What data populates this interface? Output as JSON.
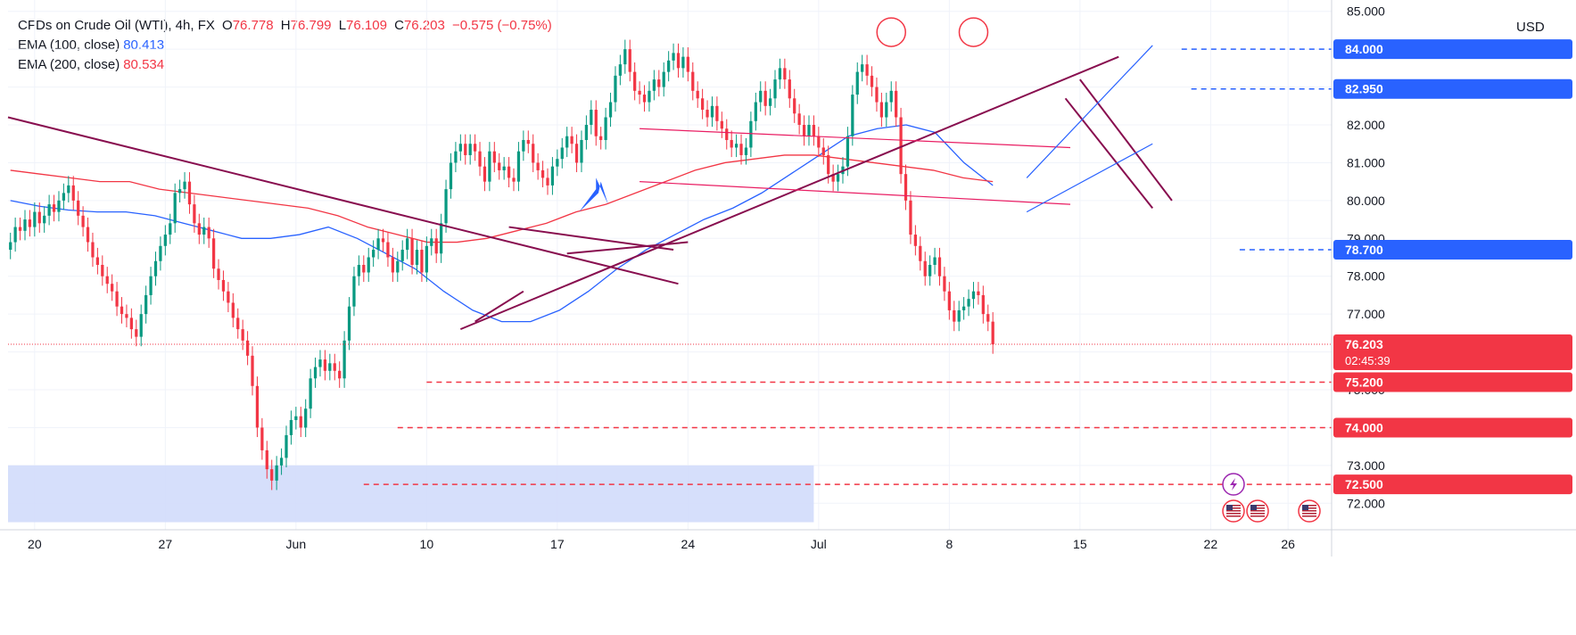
{
  "header": {
    "symbol": "CFDs on Crude Oil (WTI), 4h, FX",
    "o_label": "O",
    "o_value": "76.778",
    "h_label": "H",
    "h_value": "76.799",
    "l_label": "L",
    "l_value": "76.109",
    "c_label": "C",
    "c_value": "76.203",
    "change": "−0.575 (−0.75%)",
    "ema100_label": "EMA (100, close)",
    "ema100_value": "80.413",
    "ema200_label": "EMA (200, close)",
    "ema200_value": "80.534",
    "currency": "USD"
  },
  "colors": {
    "up": "#089981",
    "down": "#f23645",
    "ema100": "#2962ff",
    "ema200": "#f23645",
    "trendline": "#880e4f",
    "channel": "#e91e63",
    "support": "#f23645",
    "resistance": "#2962ff",
    "zone": "#d1dcfb",
    "grid": "#f0f3fa"
  },
  "chart_data": {
    "type": "candlestick",
    "title": "CFDs on Crude Oil (WTI), 4h, FX",
    "ylim": [
      71.3,
      85.3
    ],
    "y_ticks": [
      "72.000",
      "73.000",
      "74.000",
      "75.000",
      "76.000",
      "77.000",
      "78.000",
      "79.000",
      "80.000",
      "81.000",
      "82.000",
      "83.000",
      "84.000",
      "85.000"
    ],
    "x_ticks": [
      {
        "label": "20",
        "t": 5
      },
      {
        "label": "27",
        "t": 32
      },
      {
        "label": "Jun",
        "t": 59
      },
      {
        "label": "10",
        "t": 86
      },
      {
        "label": "17",
        "t": 113
      },
      {
        "label": "24",
        "t": 140
      },
      {
        "label": "Jul",
        "t": 167
      },
      {
        "label": "8",
        "t": 194
      },
      {
        "label": "15",
        "t": 221
      },
      {
        "label": "22",
        "t": 248
      },
      {
        "label": "26",
        "t": 264
      }
    ],
    "t_range": [
      -0.5,
      273
    ],
    "closes": [
      78.9,
      79.3,
      79.2,
      79.5,
      79.3,
      79.7,
      79.4,
      79.6,
      79.9,
      79.7,
      80.0,
      80.2,
      80.4,
      80.0,
      79.6,
      79.3,
      78.9,
      78.5,
      78.3,
      78.0,
      77.8,
      77.6,
      77.2,
      77.0,
      76.9,
      76.6,
      76.4,
      77.0,
      77.5,
      78.0,
      78.4,
      78.8,
      79.1,
      79.4,
      80.2,
      80.3,
      80.5,
      79.9,
      79.4,
      79.1,
      79.3,
      79.0,
      78.2,
      77.9,
      77.6,
      77.3,
      76.9,
      76.6,
      76.3,
      75.9,
      75.1,
      74.0,
      73.4,
      72.9,
      72.6,
      73.0,
      73.2,
      73.8,
      74.2,
      74.3,
      74.0,
      74.5,
      75.3,
      75.6,
      75.8,
      75.5,
      75.7,
      75.5,
      75.3,
      76.3,
      77.2,
      78.0,
      78.3,
      78.1,
      78.5,
      78.7,
      79.0,
      78.9,
      78.5,
      78.1,
      78.4,
      78.7,
      79.0,
      78.3,
      78.7,
      78.1,
      78.8,
      79.0,
      78.6,
      79.4,
      80.3,
      81.0,
      81.3,
      81.5,
      81.2,
      81.5,
      81.3,
      80.9,
      80.5,
      81.3,
      81.0,
      80.8,
      80.9,
      80.6,
      80.5,
      81.3,
      81.6,
      81.5,
      81.0,
      80.8,
      80.6,
      80.4,
      80.9,
      81.1,
      81.4,
      81.7,
      81.5,
      81.0,
      81.6,
      82.0,
      82.4,
      81.7,
      81.6,
      82.2,
      82.6,
      83.3,
      83.6,
      84.0,
      83.4,
      82.9,
      82.8,
      82.6,
      82.9,
      83.2,
      83.0,
      83.4,
      83.7,
      83.9,
      83.5,
      83.8,
      83.4,
      82.9,
      82.7,
      82.4,
      82.2,
      82.5,
      82.1,
      81.9,
      81.6,
      81.4,
      81.5,
      81.2,
      81.4,
      82.1,
      82.6,
      82.9,
      82.5,
      82.7,
      83.2,
      83.5,
      83.2,
      82.7,
      82.3,
      82.0,
      81.7,
      82.0,
      81.7,
      81.4,
      81.2,
      80.7,
      80.5,
      80.7,
      80.9,
      81.7,
      82.8,
      83.4,
      83.6,
      83.3,
      83.0,
      82.6,
      82.2,
      82.6,
      82.9,
      82.2,
      80.7,
      80.0,
      79.1,
      78.8,
      78.4,
      78.0,
      78.3,
      78.5,
      78.0,
      77.6,
      77.1,
      76.8,
      77.1,
      77.2,
      77.4,
      77.6,
      77.5,
      77.0,
      76.8,
      76.2
    ],
    "series": [
      {
        "name": "EMA (100, close)",
        "values": [
          80.0,
          79.85,
          79.75,
          79.7,
          79.7,
          79.6,
          79.4,
          79.2,
          79.0,
          79.0,
          79.1,
          79.3,
          79.0,
          78.6,
          78.2,
          77.6,
          77.1,
          76.8,
          76.8,
          77.1,
          77.6,
          78.2,
          78.7,
          79.1,
          79.5,
          79.8,
          80.2,
          80.7,
          81.2,
          81.7,
          81.9,
          82.0,
          81.8,
          81.0,
          80.4
        ]
      },
      {
        "name": "EMA (200, close)",
        "values": [
          80.8,
          80.7,
          80.6,
          80.5,
          80.5,
          80.3,
          80.2,
          80.1,
          80.0,
          79.9,
          79.8,
          79.6,
          79.3,
          79.1,
          78.9,
          78.9,
          79.0,
          79.2,
          79.4,
          79.7,
          79.9,
          80.2,
          80.5,
          80.8,
          81.0,
          81.1,
          81.2,
          81.2,
          81.1,
          81.0,
          80.9,
          80.8,
          80.6,
          80.5
        ]
      }
    ],
    "horizontal_levels": [
      {
        "value": "84.000",
        "price": 84.0,
        "style": "resistance",
        "from_t": 242
      },
      {
        "value": "82.950",
        "price": 82.95,
        "style": "resistance",
        "from_t": 244
      },
      {
        "value": "78.700",
        "price": 78.7,
        "style": "resistance",
        "from_t": 254
      },
      {
        "value": "75.200",
        "price": 75.2,
        "style": "support",
        "from_t": 86
      },
      {
        "value": "74.000",
        "price": 74.0,
        "style": "support",
        "from_t": 80
      },
      {
        "value": "72.500",
        "price": 72.5,
        "style": "support",
        "from_t": 73
      }
    ],
    "last_price": {
      "value": "76.203",
      "countdown": "02:45:39"
    },
    "support_zone": {
      "from_t": -0.5,
      "to_t": 166,
      "y_from": 71.5,
      "y_to": 73.0
    },
    "drawings": [
      {
        "kind": "trendline",
        "p1": [
          -0.5,
          82.2
        ],
        "p2": [
          138,
          77.8
        ]
      },
      {
        "kind": "trendline",
        "p1": [
          93,
          76.6
        ],
        "p2": [
          229,
          83.8
        ]
      },
      {
        "kind": "trendline",
        "p1": [
          103,
          79.3
        ],
        "p2": [
          137,
          78.7
        ]
      },
      {
        "kind": "trendline",
        "p1": [
          96,
          76.8
        ],
        "p2": [
          106,
          77.6
        ]
      },
      {
        "kind": "trendline",
        "p1": [
          115,
          78.6
        ],
        "p2": [
          140,
          78.9
        ]
      },
      {
        "kind": "trendline",
        "p1": [
          221,
          83.2
        ],
        "p2": [
          240,
          80.0
        ]
      },
      {
        "kind": "trendline",
        "p1": [
          218,
          82.7
        ],
        "p2": [
          236,
          79.8
        ]
      },
      {
        "kind": "channel",
        "p1": [
          130,
          81.9
        ],
        "p2": [
          219,
          81.4
        ]
      },
      {
        "kind": "channel",
        "p1": [
          130,
          80.5
        ],
        "p2": [
          219,
          79.9
        ]
      },
      {
        "kind": "channel-blue",
        "p1": [
          210,
          80.6
        ],
        "p2": [
          236,
          84.1
        ]
      },
      {
        "kind": "channel-blue",
        "p1": [
          210,
          79.7
        ],
        "p2": [
          236,
          81.5
        ]
      }
    ],
    "circles": [
      {
        "t": 182,
        "price": 84.45
      },
      {
        "t": 199,
        "price": 84.45
      }
    ]
  }
}
